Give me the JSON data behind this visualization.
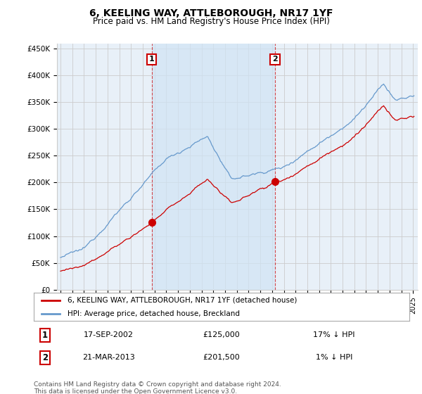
{
  "title": "6, KEELING WAY, ATTLEBOROUGH, NR17 1YF",
  "subtitle": "Price paid vs. HM Land Registry's House Price Index (HPI)",
  "yticks": [
    0,
    50000,
    100000,
    150000,
    200000,
    250000,
    300000,
    350000,
    400000,
    450000
  ],
  "ytick_labels": [
    "£0",
    "£50K",
    "£100K",
    "£150K",
    "£200K",
    "£250K",
    "£300K",
    "£350K",
    "£400K",
    "£450K"
  ],
  "purchase1_year": 2002.75,
  "purchase1_price": 125000,
  "purchase2_year": 2013.25,
  "purchase2_price": 201500,
  "line_color_house": "#cc0000",
  "line_color_hpi": "#6699cc",
  "background_color": "#e8f0f8",
  "fill_color": "#d0e4f5",
  "grid_color": "#cccccc",
  "legend_house": "6, KEELING WAY, ATTLEBOROUGH, NR17 1YF (detached house)",
  "legend_hpi": "HPI: Average price, detached house, Breckland",
  "annotation1_date": "17-SEP-2002",
  "annotation1_price": "£125,000",
  "annotation1_rel": "17% ↓ HPI",
  "annotation2_date": "21-MAR-2013",
  "annotation2_price": "£201,500",
  "annotation2_rel": "1% ↓ HPI",
  "footer": "Contains HM Land Registry data © Crown copyright and database right 2024.\nThis data is licensed under the Open Government Licence v3.0."
}
